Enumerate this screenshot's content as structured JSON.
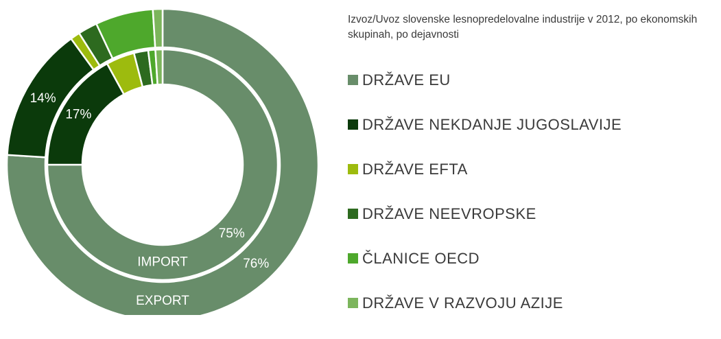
{
  "chart_data": {
    "type": "doughnut",
    "title": "Izvoz/Uvoz slovenske lesnopredelovalne industrije v 2012, po ekonomskih skupinah, po dejavnosti",
    "categories": [
      "DRŽAVE EU",
      "DRŽAVE NEKDANJE JUGOSLAVIJE",
      "DRŽAVE EFTA",
      "DRŽAVE NEEVROPSKE",
      "ČLANICE OECD",
      "DRŽAVE V RAZVOJU AZIJE"
    ],
    "colors": [
      "#688d6a",
      "#0b3a0b",
      "#9dbb0e",
      "#2d6a1f",
      "#4ea82c",
      "#7cb55c"
    ],
    "series": [
      {
        "name": "EXPORT",
        "values": [
          76,
          14,
          1,
          2,
          6,
          1
        ],
        "value_labels": [
          "76%",
          "14%",
          null,
          null,
          null,
          null
        ]
      },
      {
        "name": "IMPORT",
        "values": [
          75,
          17,
          4,
          2,
          1,
          1
        ],
        "value_labels": [
          "75%",
          "17%",
          null,
          null,
          null,
          null
        ]
      }
    ],
    "legend": "right"
  }
}
